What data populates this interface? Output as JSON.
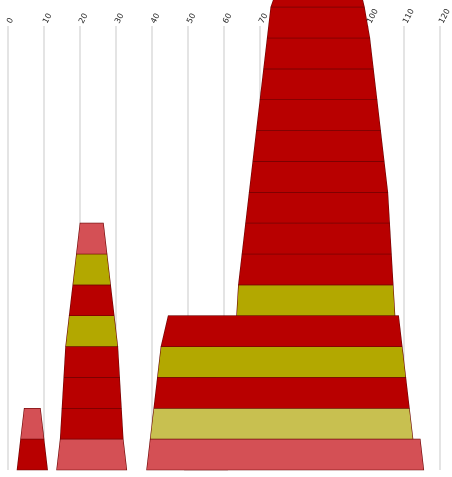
{
  "chart_data": {
    "type": "area",
    "title": "",
    "xlabel": "",
    "ylabel": "",
    "xlim": [
      0,
      120
    ],
    "x_ticks": [
      0,
      10,
      20,
      30,
      40,
      50,
      60,
      70,
      80,
      90,
      100,
      110,
      120
    ],
    "x_tick_labels": [
      "0",
      "10",
      "20",
      "30",
      "40",
      "50",
      "60",
      "70",
      "80",
      "90",
      "100",
      "110",
      "120"
    ],
    "grid": true,
    "legend": "none",
    "colors": {
      "red": "#b80000",
      "olive": "#b3a800",
      "light_red": "#d45055",
      "light_olive": "#c8c050",
      "grid": "#c8c8c8"
    },
    "ylim": [
      0,
      14
    ],
    "stacks": [
      {
        "name": "",
        "bands": [
          {
            "color": "red",
            "left": [
              2.5,
              3.5
            ],
            "right": [
              11,
              10
            ]
          },
          {
            "color": "light_red",
            "left": [
              3.5,
              4.5
            ],
            "right": [
              10,
              9
            ]
          }
        ]
      },
      {
        "name": "",
        "bands": [
          {
            "color": "light_red",
            "left": [
              13.5,
              14.5
            ],
            "right": [
              33,
              32
            ]
          },
          {
            "color": "red",
            "left": [
              14.5,
              15
            ],
            "right": [
              32,
              31.5
            ]
          },
          {
            "color": "red",
            "left": [
              15,
              15.5
            ],
            "right": [
              31.5,
              31
            ]
          },
          {
            "color": "red",
            "left": [
              15.5,
              16
            ],
            "right": [
              31,
              30.5
            ]
          },
          {
            "color": "olive",
            "left": [
              16,
              17
            ],
            "right": [
              30.5,
              29.5
            ]
          },
          {
            "color": "red",
            "left": [
              17,
              18
            ],
            "right": [
              29.5,
              28.5
            ]
          },
          {
            "color": "olive",
            "left": [
              18,
              19
            ],
            "right": [
              28.5,
              27.5
            ]
          },
          {
            "color": "light_red",
            "left": [
              19,
              20
            ],
            "right": [
              27.5,
              26.5
            ]
          }
        ]
      },
      {
        "name": "",
        "bands": [
          {
            "color": "red",
            "left": [
              49,
              50.5
            ],
            "right": [
              61,
              59.5
            ]
          },
          {
            "color": "red",
            "left": [
              50.5,
              51.5
            ],
            "right": [
              59.5,
              58.5
            ]
          },
          {
            "color": "olive",
            "left": [
              51.5,
              52.5
            ],
            "right": [
              58.5,
              57.5
            ]
          },
          {
            "color": "light_red",
            "left": [
              52.5,
              53.5
            ],
            "right": [
              57.5,
              56.5
            ]
          }
        ]
      },
      {
        "name": "",
        "bands": [
          {
            "color": "light_red",
            "left": [
              38.5,
              39.5
            ],
            "right": [
              115.5,
              114.5
            ]
          },
          {
            "color": "light_olive",
            "left": [
              39.5,
              40.5
            ],
            "right": [
              112.5,
              111.5
            ]
          },
          {
            "color": "red",
            "left": [
              40.5,
              41.5
            ],
            "right": [
              111.5,
              110.5
            ]
          },
          {
            "color": "olive",
            "left": [
              41.5,
              42.5
            ],
            "right": [
              110.5,
              109.5
            ]
          },
          {
            "color": "red",
            "left": [
              42.5,
              44.5
            ],
            "right": [
              109.5,
              108.5
            ]
          },
          {
            "color": "olive",
            "left": [
              63.5,
              64
            ],
            "right": [
              107.5,
              107
            ]
          },
          {
            "color": "red",
            "left": [
              64,
              65
            ],
            "right": [
              107,
              106.5
            ]
          },
          {
            "color": "red",
            "left": [
              65,
              66
            ],
            "right": [
              106.5,
              106
            ]
          },
          {
            "color": "red",
            "left": [
              66,
              67
            ],
            "right": [
              106,
              105.5
            ]
          },
          {
            "color": "red",
            "left": [
              67,
              68
            ],
            "right": [
              105.5,
              104.5
            ]
          },
          {
            "color": "red",
            "left": [
              68,
              69
            ],
            "right": [
              104.5,
              103.5
            ]
          },
          {
            "color": "red",
            "left": [
              69,
              70
            ],
            "right": [
              103.5,
              102.5
            ]
          },
          {
            "color": "red",
            "left": [
              70,
              71
            ],
            "right": [
              102.5,
              101.5
            ]
          },
          {
            "color": "red",
            "left": [
              71,
              72
            ],
            "right": [
              101.5,
              100.5
            ]
          },
          {
            "color": "red",
            "left": [
              72,
              73
            ],
            "right": [
              100.5,
              99
            ]
          },
          {
            "color": "red",
            "left": [
              73,
              76
            ],
            "right": [
              99,
              97
            ]
          },
          {
            "color": "light_red",
            "left": [
              76,
              77
            ],
            "right": [
              84,
              83
            ]
          },
          {
            "color": "red",
            "left": [
              85,
              86
            ],
            "right": [
              97,
              96
            ]
          },
          {
            "color": "red",
            "left": [
              86,
              87
            ],
            "right": [
              96,
              95
            ]
          },
          {
            "color": "red",
            "left": [
              77,
              78
            ],
            "right": [
              83,
              82
            ]
          },
          {
            "color": "light_red",
            "left": [
              87,
              88
            ],
            "right": [
              95,
              94
            ]
          }
        ]
      }
    ]
  }
}
